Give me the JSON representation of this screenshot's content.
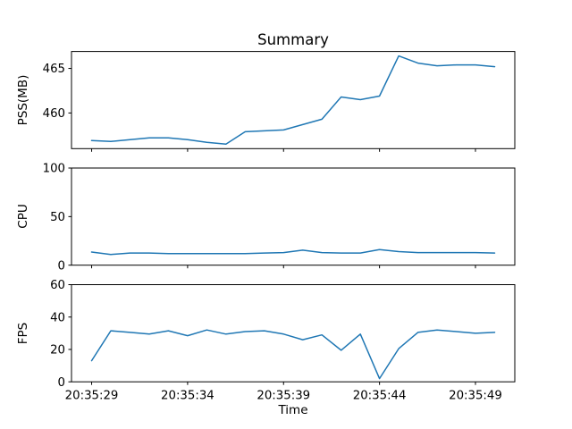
{
  "figure": {
    "background": "#ffffff",
    "frame_color": "#000000",
    "text_color": "#000000"
  },
  "chart_data": [
    {
      "type": "line",
      "title": "Summary",
      "ylabel": "PSS(MB)",
      "x": [
        "20:35:29",
        "20:35:30",
        "20:35:31",
        "20:35:32",
        "20:35:33",
        "20:35:34",
        "20:35:35",
        "20:35:36",
        "20:35:37",
        "20:35:38",
        "20:35:39",
        "20:35:40",
        "20:35:41",
        "20:35:42",
        "20:35:43",
        "20:35:44",
        "20:35:45",
        "20:35:46",
        "20:35:47",
        "20:35:48",
        "20:35:49",
        "20:35:50"
      ],
      "values": [
        456.9,
        456.8,
        457.0,
        457.2,
        457.2,
        457.0,
        456.7,
        456.5,
        457.9,
        458.0,
        458.1,
        458.7,
        459.3,
        461.8,
        461.5,
        461.9,
        466.4,
        465.6,
        465.3,
        465.4,
        465.4,
        465.2
      ],
      "yticks": [
        460,
        465
      ],
      "ylim": [
        456.0,
        466.9
      ],
      "grid": false,
      "legend": false,
      "line_color": "#1f77b4"
    },
    {
      "type": "line",
      "ylabel": "CPU",
      "values": [
        13.5,
        11,
        12.5,
        12.5,
        12,
        12,
        12,
        12,
        12,
        12.5,
        13,
        15.5,
        13,
        12.5,
        12.5,
        16,
        14,
        13,
        13,
        13,
        13,
        12.5
      ],
      "yticks": [
        0,
        50,
        100
      ],
      "ylim": [
        0,
        100
      ],
      "grid": false,
      "legend": false,
      "line_color": "#1f77b4"
    },
    {
      "type": "line",
      "ylabel": "FPS",
      "xlabel": "Time",
      "values": [
        13,
        31.5,
        30.5,
        29.5,
        31.5,
        28.5,
        32,
        29.5,
        31,
        31.5,
        29.5,
        26,
        29,
        19.5,
        29.5,
        2,
        20.5,
        30.5,
        32,
        31,
        30,
        30.5
      ],
      "yticks": [
        0,
        20,
        40,
        60
      ],
      "ylim": [
        0,
        60
      ],
      "x_tick_indices": [
        0,
        5,
        10,
        15,
        20
      ],
      "x_tick_labels": [
        "20:35:29",
        "20:35:34",
        "20:35:39",
        "20:35:44",
        "20:35:49"
      ],
      "grid": false,
      "legend": false,
      "line_color": "#1f77b4"
    }
  ]
}
